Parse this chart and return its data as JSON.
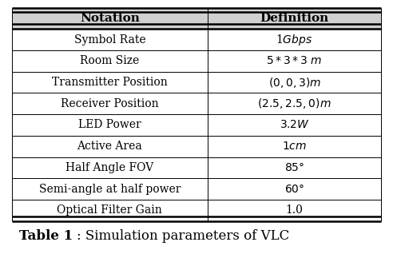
{
  "col_headers": [
    "Notation",
    "Definition"
  ],
  "rows": [
    [
      "Symbol Rate",
      "1$Gbps$"
    ],
    [
      "Room Size",
      "$5*3*3$ $m$"
    ],
    [
      "Transmitter Position",
      "$(0,0,3)m$"
    ],
    [
      "Receiver Position",
      "$(2.5,2.5,0)m$"
    ],
    [
      "LED Power",
      "$3.2W$"
    ],
    [
      "Active Area",
      "$1cm$"
    ],
    [
      "Half Angle FOV",
      "$85\\degree$"
    ],
    [
      "Semi-angle at half power",
      "$60\\degree$"
    ],
    [
      "Optical Filter Gain",
      "1.0"
    ]
  ],
  "bg_color": "#ffffff",
  "header_bg": "#d0d0d0",
  "line_color": "#000000",
  "text_color": "#000000",
  "font_size": 10,
  "header_font_size": 11,
  "col_split": 0.53,
  "caption_bold": "Table 1",
  "caption_normal": ": Simulation parameters of VLC"
}
